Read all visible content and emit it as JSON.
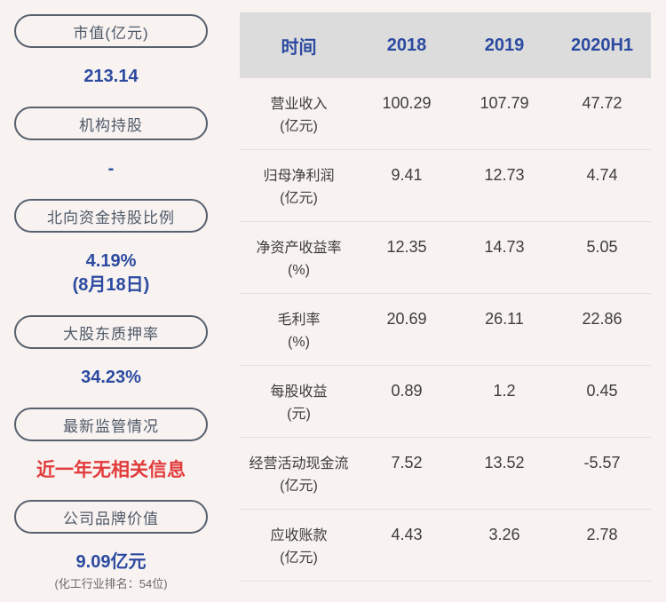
{
  "colors": {
    "page_bg": "#f8f2f1",
    "header_bg": "#dcdcdc",
    "accent_blue": "#2b4aa0",
    "alert_red": "#e23b3b",
    "pill_border": "#57616e",
    "pill_text": "#4e5a68",
    "table_text": "#3d3d3d",
    "subtext_gray": "#6a6a6a",
    "divider": "#e4dfde"
  },
  "sidebar": {
    "items": [
      {
        "id": "market-cap",
        "label": "市值(亿元)",
        "value": "213.14"
      },
      {
        "id": "institutional-holdings",
        "label": "机构持股",
        "value": "-"
      },
      {
        "id": "northbound-ratio",
        "label": "北向资金持股比例",
        "value": "4.19%",
        "value_line2": "(8月18日)"
      },
      {
        "id": "pledge-ratio",
        "label": "大股东质押率",
        "value": "34.23%"
      },
      {
        "id": "regulation-status",
        "label": "最新监管情况",
        "value": "近一年无相关信息"
      },
      {
        "id": "brand-value",
        "label": "公司品牌价值",
        "value": "9.09亿元",
        "subtext": "(化工行业排名：54位)"
      }
    ]
  },
  "table": {
    "header": {
      "time_label": "时间",
      "columns": [
        "2018",
        "2019",
        "2020H1"
      ]
    },
    "rows": [
      {
        "name": "营业收入",
        "unit": "(亿元)",
        "values": [
          "100.29",
          "107.79",
          "47.72"
        ]
      },
      {
        "name": "归母净利润",
        "unit": "(亿元)",
        "values": [
          "9.41",
          "12.73",
          "4.74"
        ]
      },
      {
        "name": "净资产收益率",
        "unit": "(%)",
        "values": [
          "12.35",
          "14.73",
          "5.05"
        ]
      },
      {
        "name": "毛利率",
        "unit": "(%)",
        "values": [
          "20.69",
          "26.11",
          "22.86"
        ]
      },
      {
        "name": "每股收益",
        "unit": "(元)",
        "values": [
          "0.89",
          "1.2",
          "0.45"
        ]
      },
      {
        "name": "经营活动现金流",
        "unit": "(亿元)",
        "values": [
          "7.52",
          "13.52",
          "-5.57"
        ]
      },
      {
        "name": "应收账款",
        "unit": "(亿元)",
        "values": [
          "4.43",
          "3.26",
          "2.78"
        ]
      }
    ]
  }
}
